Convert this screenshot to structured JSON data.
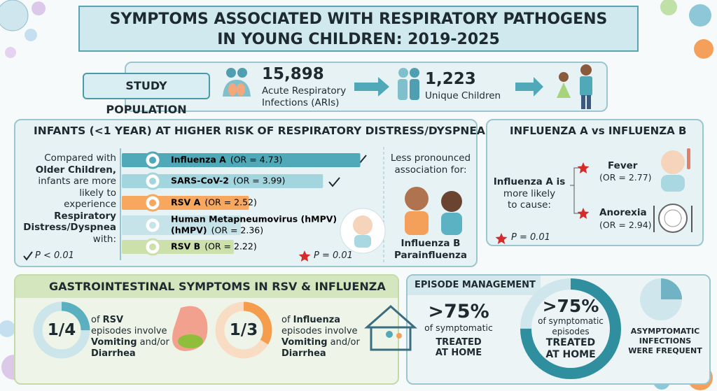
{
  "header": {
    "title_line1": "SYMPTOMS ASSOCIATED WITH RESPIRATORY PATHOGENS",
    "title_line2": "IN YOUNG CHILDREN: 2019-2025"
  },
  "study_population": {
    "label": "STUDY POPULATION",
    "infections_count": "15,898",
    "infections_line1": "Acute Respiratory",
    "infections_line2": "Infections (ARIs)",
    "children_count": "1,223",
    "children_label": "Unique Children"
  },
  "infants": {
    "title": "INFANTS (<1 YEAR) AT HIGHER RISK OF RESPIRATORY DISTRESS/DYSPNEA",
    "intro": [
      "Compared with",
      "Older Children,",
      "infants are more",
      "likely to",
      "experience",
      "Respiratory",
      "Distress/Dyspnea",
      "with:"
    ],
    "bars": [
      {
        "name": "Influenza A",
        "or": 4.73,
        "or_label": "(OR = 4.73)",
        "color": "#4fa9b8"
      },
      {
        "name": "SARS-CoV-2",
        "or": 3.99,
        "or_label": "(OR = 3.99)",
        "color": "#a3d5de"
      },
      {
        "name": "RSV A",
        "or": 2.52,
        "or_label": "(OR = 2.52)",
        "color": "#f7a75e"
      },
      {
        "name": "Human Metapneumovirus (hMPV)",
        "subname": "(hMPV)",
        "or": 2.36,
        "or_label": "(OR = 2.36)",
        "color": "#c6e3ea"
      },
      {
        "name": "RSV B",
        "or": 2.22,
        "or_label": "(OR = 2.22)",
        "color": "#cbe0ab"
      }
    ],
    "less_title_line1": "Less pronounced",
    "less_title_line2": "association for:",
    "less_items": [
      "Influenza B",
      "Parainfluenza"
    ],
    "footnote_check": "P < 0.01",
    "footnote_star": "P = 0.01"
  },
  "influenza": {
    "title": "INFLUENZA A vs INFLUENZA B",
    "lead": [
      "Influenza A is",
      "more likely",
      "to cause:"
    ],
    "symptoms": [
      {
        "name": "Fever",
        "or_label": "(OR = 2.77)"
      },
      {
        "name": "Anorexia",
        "or_label": "(OR = 2.94)"
      }
    ],
    "footnote": "P = 0.01"
  },
  "gi": {
    "title": "GASTROINTESTINAL SYMPTOMS IN RSV & INFLUENZA",
    "items": [
      {
        "fraction_label": "1/4",
        "fraction": 0.25,
        "prefix": "of",
        "pathogen": "RSV",
        "line2": "episodes involve",
        "symptom1": "Vomiting",
        "joiner": "and/or",
        "symptom2": "Diarrhea"
      },
      {
        "fraction_label": "1/3",
        "fraction": 0.3333,
        "prefix": "of",
        "pathogen": "Influenza",
        "line2": "episodes involve",
        "symptom1": "Vomiting",
        "joiner": "and/or",
        "symptom2": "Diarrhea"
      }
    ]
  },
  "episode": {
    "title": "EPISODE MANAGEMENT",
    "stat": {
      "value_label": ">75%",
      "line1": "of symptomatic",
      "treated1": "TREATED",
      "treated2": "AT HOME"
    },
    "donut": {
      "value": 75,
      "value_label": ">75%",
      "line1": "of symptomatic",
      "line2": "episodes",
      "treated1": "TREATED",
      "treated2": "AT HOME"
    },
    "asymptomatic": [
      "ASYMPTOMATIC",
      "INFECTIONS",
      "WERE FREQUENT"
    ]
  }
}
